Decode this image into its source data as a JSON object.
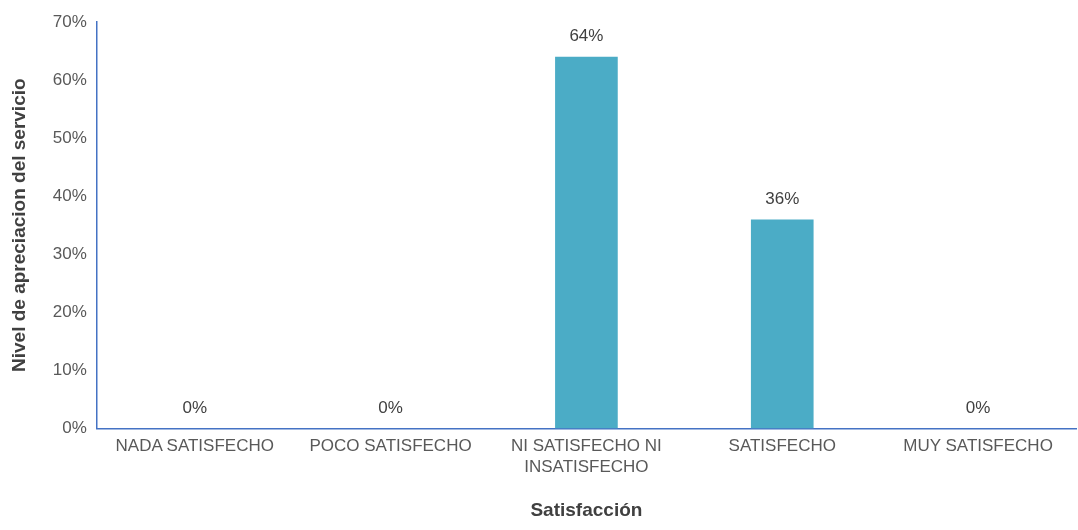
{
  "chart_data": {
    "type": "bar",
    "xlabel": "Satisfacción",
    "ylabel": "Nivel de apreciacion del servicio",
    "categories": [
      "NADA SATISFECHO",
      "POCO SATISFECHO",
      "NI SATISFECHO NI INSATISFECHO",
      "SATISFECHO",
      "MUY SATISFECHO"
    ],
    "values": [
      0,
      0,
      64,
      36,
      0
    ],
    "value_labels": [
      "0%",
      "0%",
      "64%",
      "36%",
      "0%"
    ],
    "color": "#4bacc6",
    "ylim": [
      0,
      70
    ],
    "yticks": [
      {
        "value": 0,
        "label": "0%"
      },
      {
        "value": 10,
        "label": "10%"
      },
      {
        "value": 20,
        "label": "20%"
      },
      {
        "value": 30,
        "label": "30%"
      },
      {
        "value": 40,
        "label": "40%"
      },
      {
        "value": 50,
        "label": "50%"
      },
      {
        "value": 60,
        "label": "60%"
      },
      {
        "value": 70,
        "label": "70%"
      }
    ],
    "grid": false,
    "legend": false
  }
}
